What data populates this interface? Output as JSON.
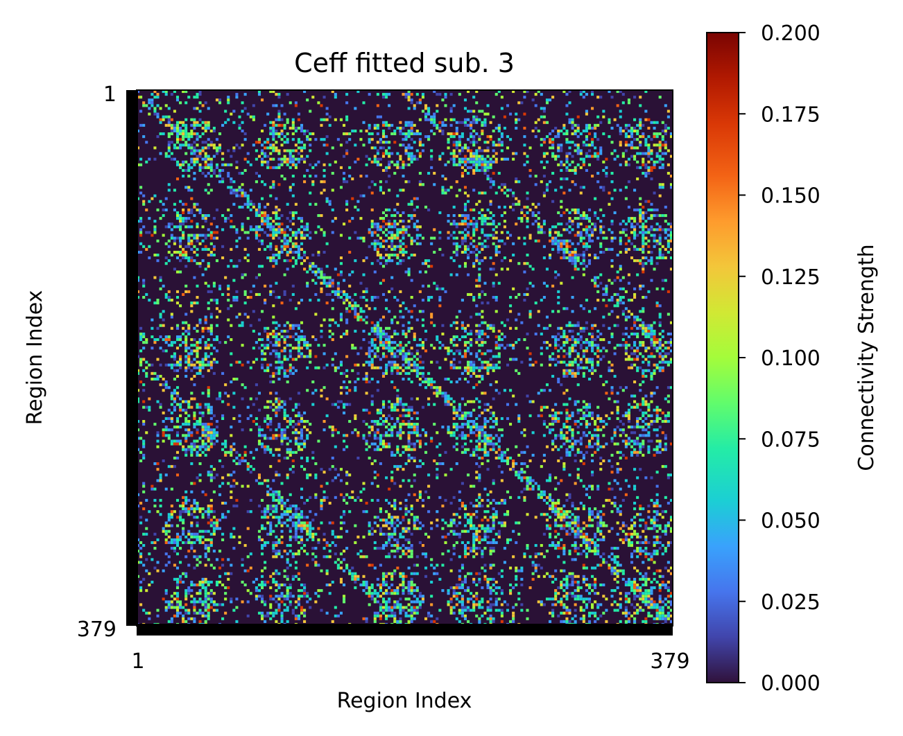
{
  "chart_data": {
    "type": "heatmap",
    "title": "Ceff fitted sub. 3",
    "xlabel": "Region Index",
    "ylabel": "Region Index",
    "n_regions": 379,
    "x_ticks": [
      "1",
      "379"
    ],
    "y_ticks": [
      "1",
      "379"
    ],
    "colorbar": {
      "label": "Connectivity Strength",
      "colormap": "turbo",
      "range": [
        0.0,
        0.2
      ],
      "ticks": [
        "0.000",
        "0.025",
        "0.050",
        "0.075",
        "0.100",
        "0.125",
        "0.150",
        "0.175",
        "0.200"
      ]
    },
    "values_note": "",
    "colors": {
      "background": "#2a1136",
      "frame": "#000000"
    }
  }
}
